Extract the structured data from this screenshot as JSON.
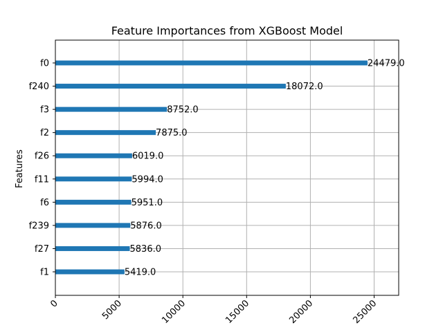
{
  "chart_data": {
    "type": "bar",
    "orientation": "horizontal",
    "title": "Feature Importances from XGBoost Model",
    "xlabel": "",
    "ylabel": "Features",
    "categories": [
      "f0",
      "f240",
      "f3",
      "f2",
      "f26",
      "f11",
      "f6",
      "f239",
      "f27",
      "f1"
    ],
    "values": [
      24479,
      18072,
      8752,
      7875,
      6019,
      5994,
      5951,
      5876,
      5836,
      5419
    ],
    "value_labels": [
      "24479.0",
      "18072.0",
      "8752.0",
      "7875.0",
      "6019.0",
      "5994.0",
      "5951.0",
      "5876.0",
      "5836.0",
      "5419.0"
    ],
    "xlim": [
      0,
      26927
    ],
    "xticks": [
      0,
      5000,
      10000,
      15000,
      20000,
      25000
    ],
    "xtick_labels": [
      "0",
      "5000",
      "10000",
      "15000",
      "20000",
      "25000"
    ],
    "xtick_rotation_deg": 45,
    "grid": true,
    "colors": {
      "bar": "#1f77b4",
      "grid": "#b0b0b0",
      "axis": "#000000"
    }
  }
}
